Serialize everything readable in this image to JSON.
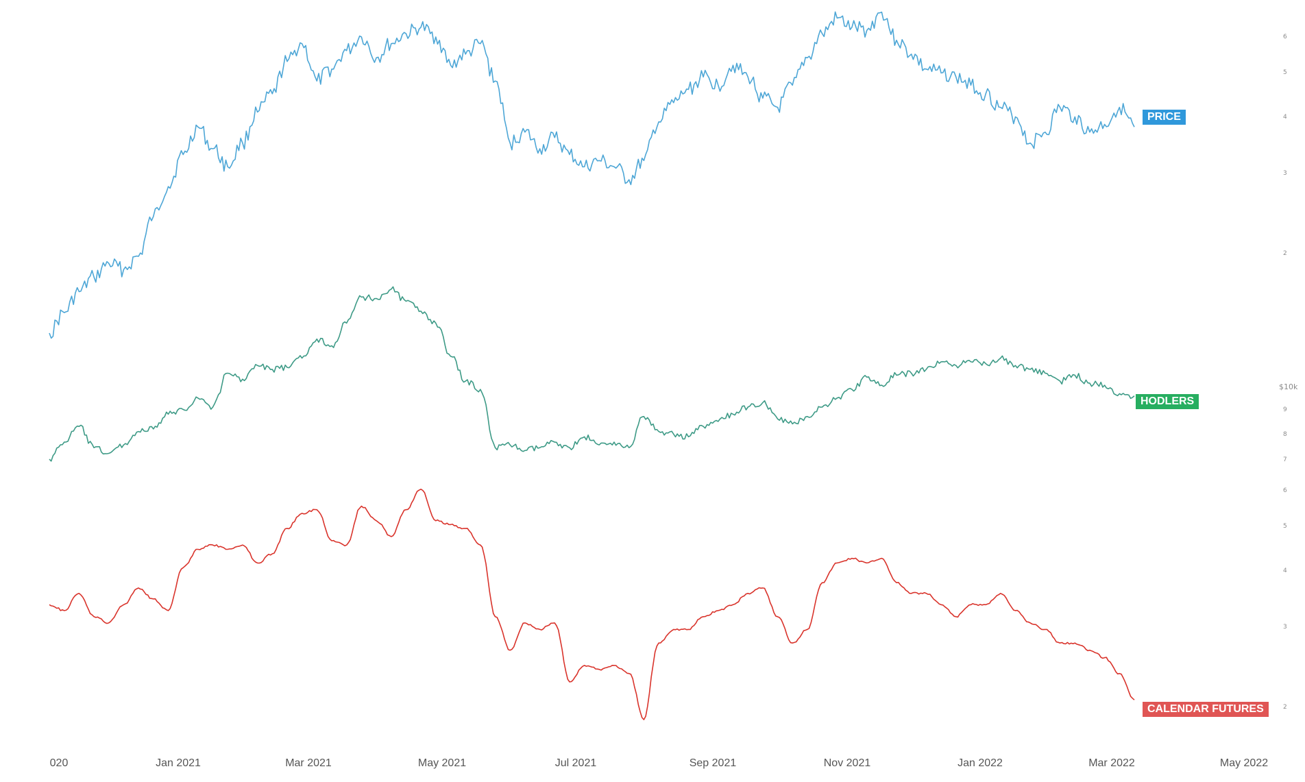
{
  "chart_data": {
    "type": "line",
    "x_axis": {
      "ticks": [
        "020",
        "Jan 2021",
        "Mar 2021",
        "May 2021",
        "Jul 2021",
        "Sep 2021",
        "Nov 2021",
        "Jan 2022",
        "Mar 2022",
        "May 2022"
      ]
    },
    "y_axis": {
      "scale": "log",
      "ticks": [
        "6",
        "5",
        "4",
        "3",
        "2",
        "$10k",
        "9",
        "8",
        "7",
        "6",
        "5",
        "4",
        "3",
        "2"
      ]
    },
    "grid": false,
    "legend": "inline labels at series ends",
    "series": [
      {
        "name": "PRICE",
        "color": "#4da6d6",
        "label_color": "#2f98db",
        "values": [
          1.4,
          1.55,
          1.72,
          1.85,
          1.98,
          1.92,
          2.05,
          2.5,
          2.9,
          3.4,
          3.9,
          3.5,
          3.2,
          3.6,
          4.2,
          4.6,
          5.4,
          5.9,
          4.9,
          5.2,
          5.7,
          6.1,
          5.5,
          5.9,
          6.2,
          6.4,
          6.1,
          5.3,
          5.6,
          5.9,
          4.9,
          3.6,
          3.8,
          3.5,
          3.7,
          3.4,
          3.2,
          3.3,
          3.2,
          3.0,
          3.3,
          4.0,
          4.4,
          4.7,
          5.0,
          4.8,
          5.3,
          5.0,
          4.5,
          4.3,
          4.8,
          5.5,
          6.2,
          6.7,
          6.4,
          6.3,
          6.9,
          6.0,
          5.6,
          5.2,
          5.1,
          5.0,
          4.8,
          4.6,
          4.3,
          4.1,
          3.6,
          3.8,
          4.3,
          4.1,
          3.8,
          3.95,
          4.3,
          3.9
        ]
      },
      {
        "name": "HODLERS",
        "color": "#3d9a86",
        "label_color": "#27ae60",
        "values": [
          7.0,
          7.6,
          8.2,
          7.4,
          7.2,
          7.5,
          8.0,
          8.1,
          8.7,
          8.9,
          9.4,
          9.0,
          10.6,
          10.3,
          11.0,
          10.8,
          10.9,
          11.4,
          12.5,
          12.1,
          13.5,
          15.3,
          15.2,
          15.9,
          15.0,
          14.3,
          13.5,
          11.5,
          10.2,
          9.8,
          7.4,
          7.5,
          7.3,
          7.4,
          7.6,
          7.4,
          7.8,
          7.5,
          7.6,
          7.4,
          8.6,
          8.0,
          7.9,
          7.8,
          8.2,
          8.4,
          8.7,
          9.0,
          9.2,
          8.5,
          8.3,
          8.6,
          9.0,
          9.4,
          9.8,
          10.4,
          10.0,
          10.5,
          10.6,
          10.8,
          11.2,
          11.0,
          11.2,
          11.1,
          11.4,
          11.0,
          10.8,
          10.6,
          10.2,
          10.5,
          10.1,
          10.0,
          9.6,
          9.5
        ]
      },
      {
        "name": "CALENDAR FUTURES",
        "color": "#d9332b",
        "label_color": "#e05554",
        "values": [
          3.4,
          3.3,
          3.6,
          3.2,
          3.1,
          3.4,
          3.7,
          3.5,
          3.3,
          4.1,
          4.5,
          4.6,
          4.5,
          4.6,
          4.2,
          4.4,
          5.0,
          5.4,
          5.5,
          4.7,
          4.6,
          5.6,
          5.2,
          4.8,
          5.5,
          6.1,
          5.2,
          5.1,
          5.0,
          4.6,
          3.2,
          2.7,
          3.1,
          3.0,
          3.1,
          2.3,
          2.5,
          2.45,
          2.5,
          2.4,
          1.9,
          2.8,
          3.0,
          3.0,
          3.2,
          3.3,
          3.4,
          3.6,
          3.7,
          3.2,
          2.8,
          3.0,
          3.8,
          4.2,
          4.3,
          4.2,
          4.3,
          3.8,
          3.6,
          3.6,
          3.4,
          3.2,
          3.4,
          3.4,
          3.6,
          3.3,
          3.1,
          3.0,
          2.8,
          2.8,
          2.7,
          2.6,
          2.4,
          2.1
        ]
      }
    ]
  }
}
